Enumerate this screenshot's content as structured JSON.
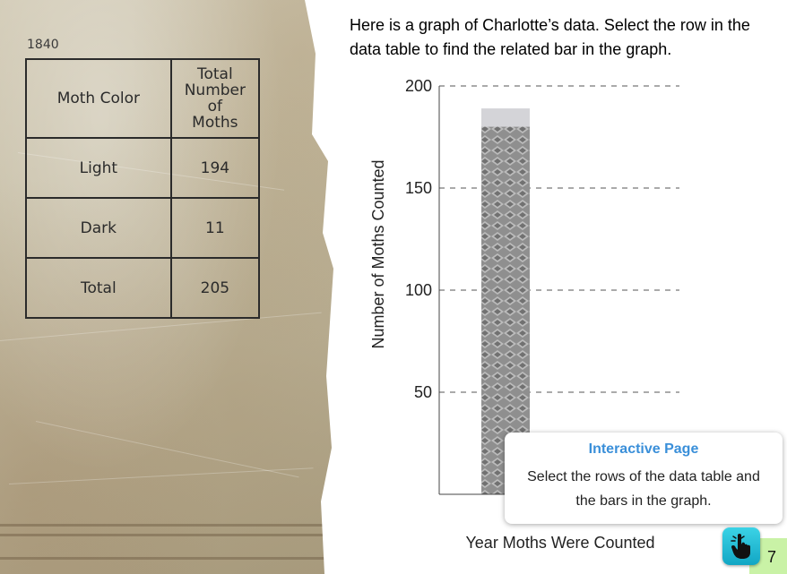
{
  "notebook": {
    "year": "1840",
    "table": {
      "headers": [
        "Moth Color",
        "Total Number of Moths"
      ],
      "rows": [
        {
          "label": "Light",
          "value": "194"
        },
        {
          "label": "Dark",
          "value": "11"
        },
        {
          "label": "Total",
          "value": "205"
        }
      ]
    }
  },
  "instruction": "Here is a graph of Charlotte’s data. Select the row in the data table to find the related bar in the graph.",
  "chart_data": {
    "type": "bar",
    "categories": [
      ""
    ],
    "series": [
      {
        "values": [
          180
        ]
      }
    ],
    "highlight_value": 189,
    "xlabel": "Year Moths Were Counted",
    "ylabel": "Number of Moths Counted",
    "ylim": [
      0,
      200
    ],
    "yticks": [
      50,
      100,
      150,
      200
    ],
    "grid": "dashed-horizontal",
    "colors": {
      "bar": "#8a8a8a",
      "highlight": "#d4d4d8",
      "grid": "#555555"
    }
  },
  "tooltip": {
    "title": "Interactive Page",
    "body": "Select the rows of the data table and the bars in the graph."
  },
  "page_number": "7",
  "icons": {
    "hand": "pointing-hand-icon"
  }
}
